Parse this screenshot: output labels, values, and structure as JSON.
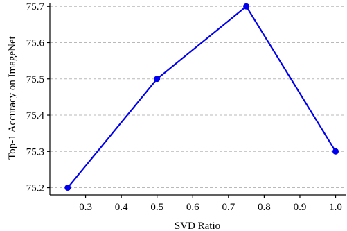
{
  "chart_data": {
    "type": "line",
    "title": "",
    "xlabel": "SVD Ratio",
    "ylabel": "Top-1 Accuracy on ImageNet",
    "xlim": [
      0.2,
      1.03
    ],
    "ylim": [
      75.18,
      75.71
    ],
    "x_ticks": [
      "0.3",
      "0.4",
      "0.5",
      "0.6",
      "0.7",
      "0.8",
      "0.9",
      "1.0"
    ],
    "y_ticks": [
      "75.2",
      "75.3",
      "75.4",
      "75.5",
      "75.6",
      "75.7"
    ],
    "grid": "horizontal dashed",
    "series": [
      {
        "color": "#0000ee",
        "marker": "circle",
        "x": [
          0.25,
          0.5,
          0.75,
          1.0
        ],
        "y": [
          75.2,
          75.5,
          75.7,
          75.3
        ]
      }
    ]
  }
}
